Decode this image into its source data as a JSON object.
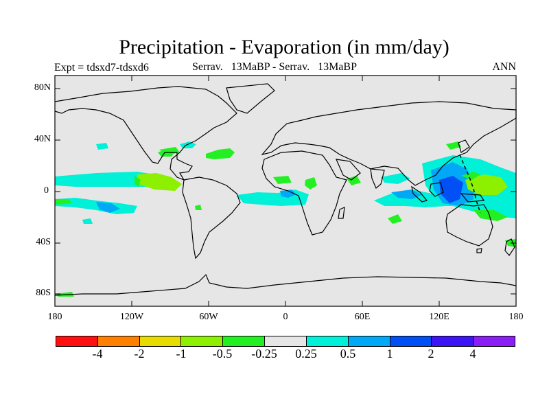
{
  "figure": {
    "title": "Precipitation - Evaporation (in mm/day)",
    "expt_label": "Expt = tdsxd7-tdsxd6",
    "center_label": "Serrav.   13MaBP - Serrav.   13MaBP",
    "season_label": "ANN"
  },
  "axes": {
    "y_ticks": [
      "80N",
      "40N",
      "0",
      "40S",
      "80S"
    ],
    "x_ticks": [
      "180",
      "120W",
      "60W",
      "0",
      "60E",
      "120E",
      "180"
    ]
  },
  "colors": {
    "land_ocean": "#e6e6e6",
    "cyan": "#00f0d8",
    "light_blue": "#00a8f5",
    "blue": "#0050f5",
    "green": "#23f023",
    "lime": "#8cf000"
  },
  "legend": {
    "colors": [
      "#ff1010",
      "#ff8000",
      "#e6dc00",
      "#8cf000",
      "#23f023",
      "#e6e6e6",
      "#00f0d8",
      "#00a8f5",
      "#0050f5",
      "#3c14f5",
      "#8a1ff5"
    ],
    "labels": [
      "-4",
      "-2",
      "-1",
      "-0.5",
      "-0.25",
      "0.25",
      "0.5",
      "1",
      "2",
      "4"
    ]
  }
}
